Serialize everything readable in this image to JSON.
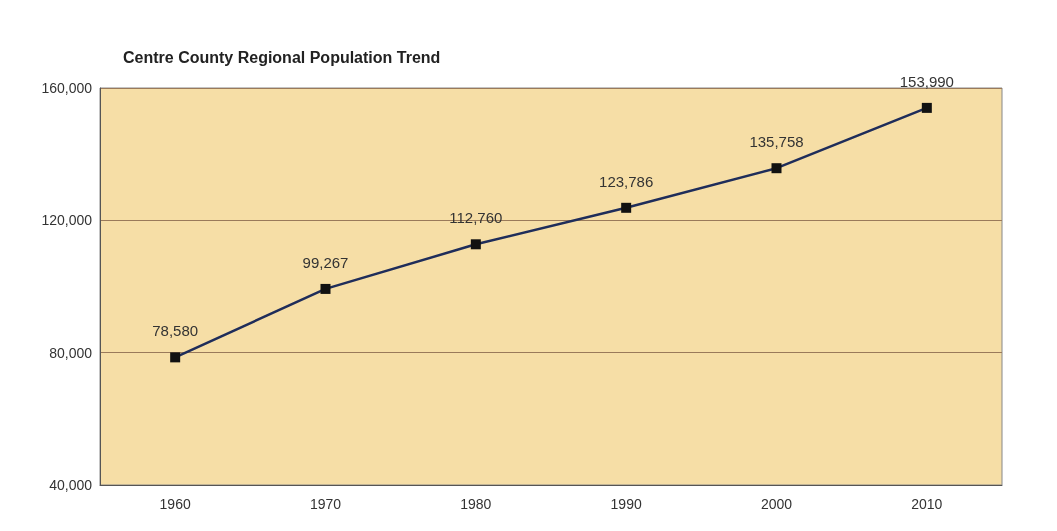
{
  "chart_data": {
    "type": "line",
    "title": "Centre County Regional Population Trend",
    "categories": [
      "1960",
      "1970",
      "1980",
      "1990",
      "2000",
      "2010"
    ],
    "series": [
      {
        "color": "#1f2d5a",
        "values": [
          78580,
          99267,
          112760,
          123786,
          135758,
          153990
        ],
        "value_labels": [
          "78,580",
          "99,267",
          "112,760",
          "123,786",
          "135,758",
          "153,990"
        ]
      }
    ],
    "ylim": [
      40000,
      160000
    ],
    "yticks": [
      {
        "value": 40000,
        "label": "40,000"
      },
      {
        "value": 80000,
        "label": "80,000"
      },
      {
        "value": 120000,
        "label": "120,000"
      },
      {
        "value": 160000,
        "label": "160,000"
      }
    ],
    "grid": "y",
    "marker": "square",
    "line_style": "solid"
  }
}
